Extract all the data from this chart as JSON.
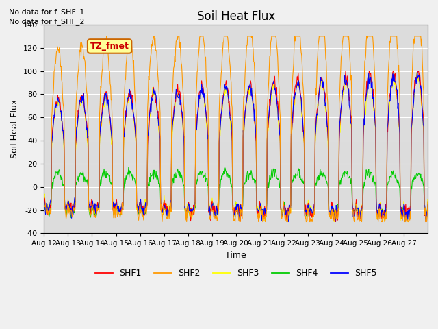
{
  "title": "Soil Heat Flux",
  "ylabel": "Soil Heat Flux",
  "xlabel": "Time",
  "ylim": [
    -40,
    140
  ],
  "yticks": [
    -40,
    -20,
    0,
    20,
    40,
    60,
    80,
    100,
    120,
    140
  ],
  "x_tick_labels": [
    "Aug 12",
    "Aug 13",
    "Aug 14",
    "Aug 15",
    "Aug 16",
    "Aug 17",
    "Aug 18",
    "Aug 19",
    "Aug 20",
    "Aug 21",
    "Aug 22",
    "Aug 23",
    "Aug 24",
    "Aug 25",
    "Aug 26",
    "Aug 27"
  ],
  "no_data_text": [
    "No data for f_SHF_1",
    "No data for f_SHF_2"
  ],
  "legend_label": "TZ_fmet",
  "series_labels": [
    "SHF1",
    "SHF2",
    "SHF3",
    "SHF4",
    "SHF5"
  ],
  "series_colors": [
    "#ff0000",
    "#ff9900",
    "#ffff00",
    "#00cc00",
    "#0000ff"
  ],
  "plot_bg_color": "#dcdcdc",
  "fig_bg_color": "#f0f0f0",
  "n_days": 16,
  "n_points_per_day": 48
}
